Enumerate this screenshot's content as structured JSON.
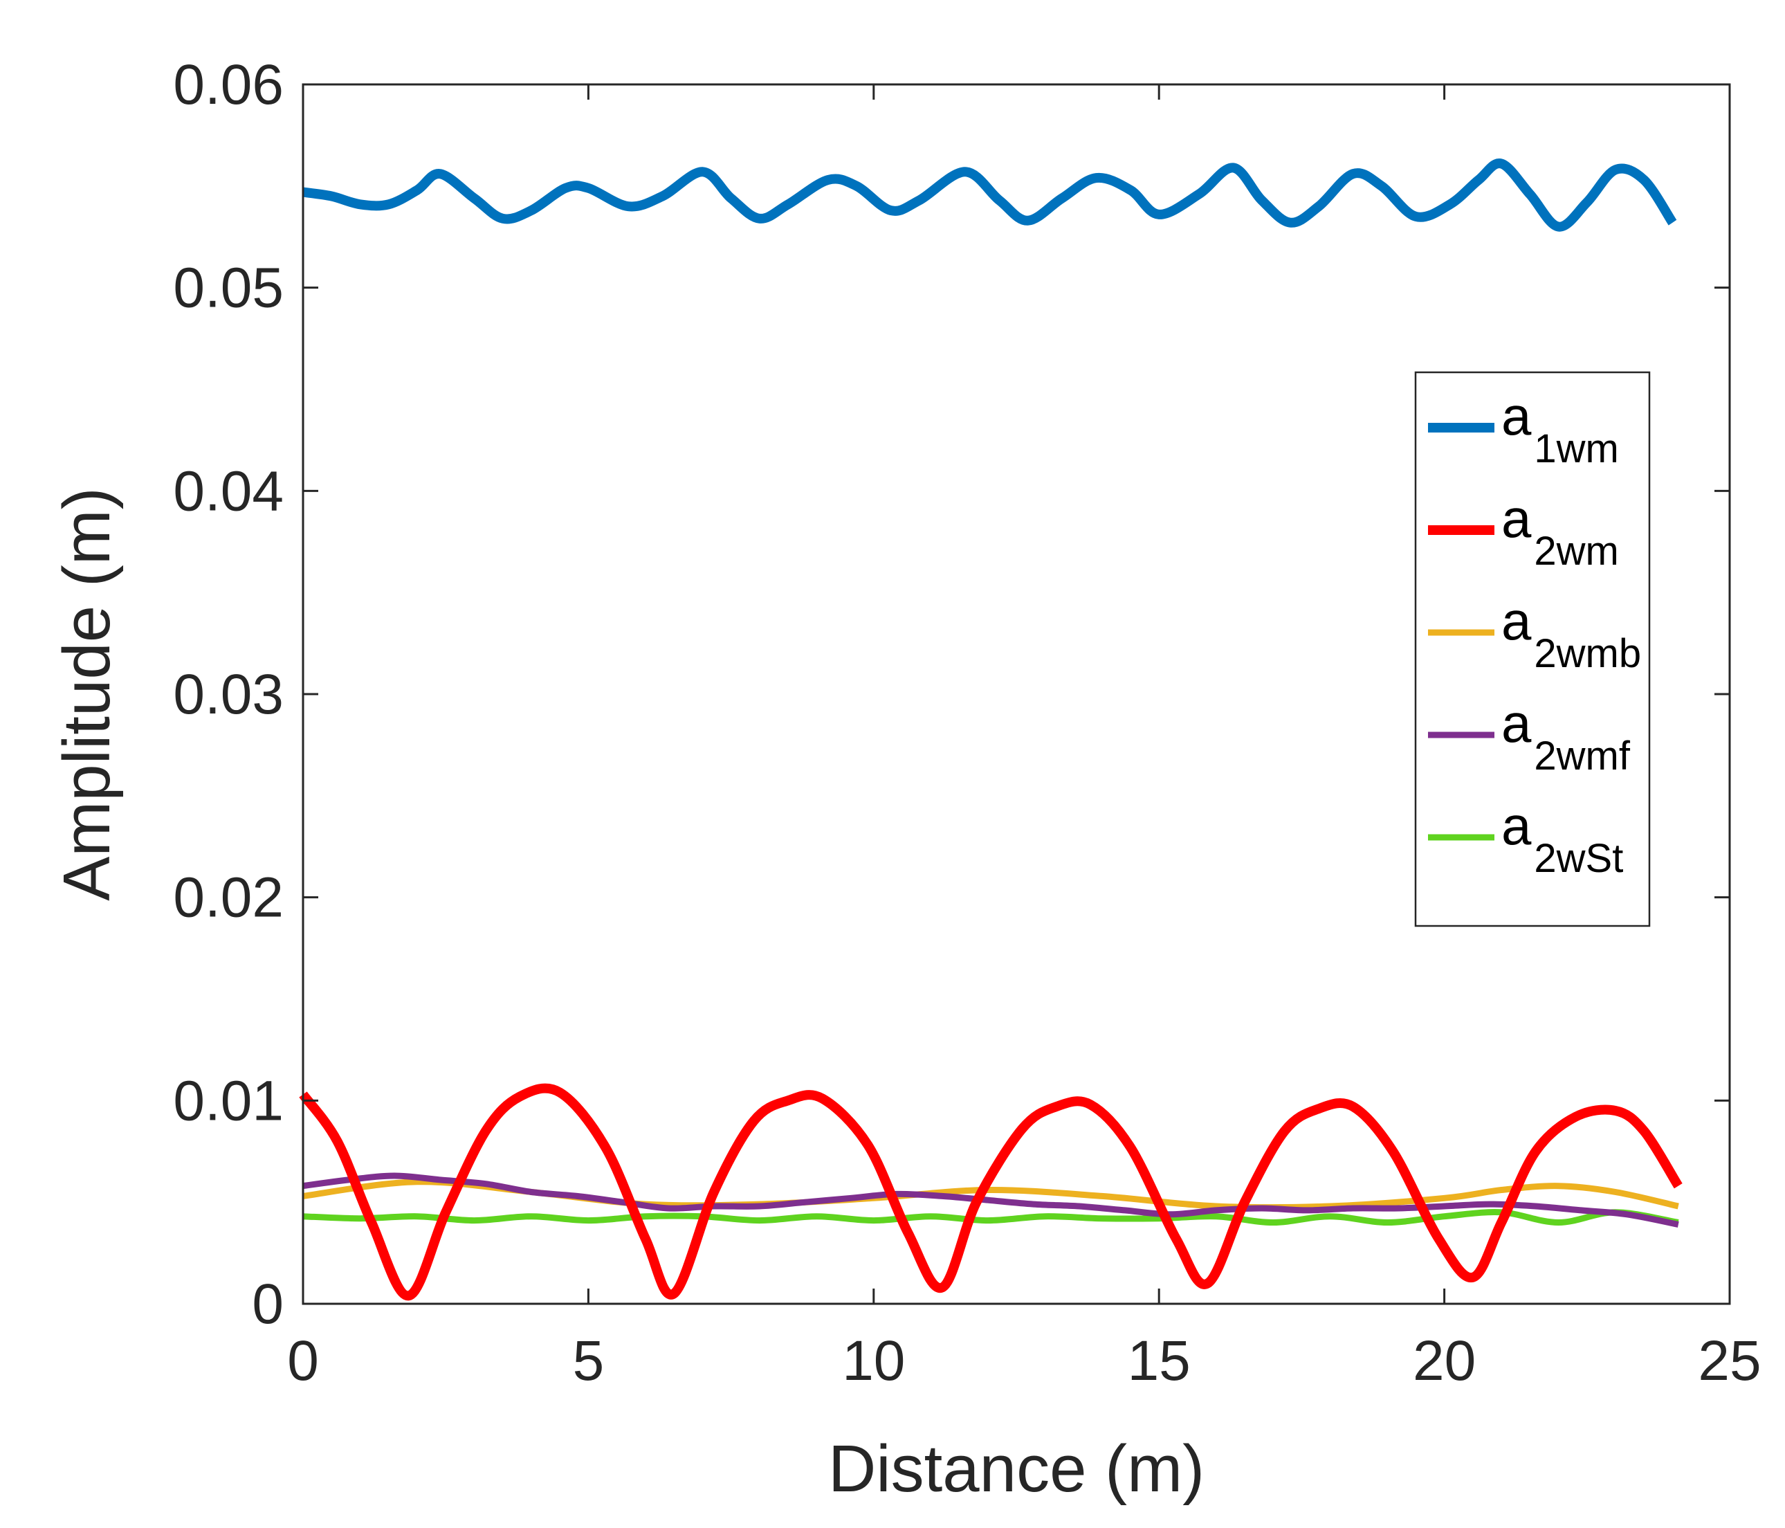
{
  "chart_data": {
    "type": "line",
    "title": "",
    "xlabel": "Distance (m)",
    "ylabel": "Amplitude (m)",
    "xlim": [
      0,
      25
    ],
    "ylim": [
      0,
      0.06
    ],
    "xticks": [
      0,
      5,
      10,
      15,
      20,
      25
    ],
    "xtick_labels": [
      "0",
      "5",
      "10",
      "15",
      "20",
      "25"
    ],
    "yticks": [
      0,
      0.01,
      0.02,
      0.03,
      0.04,
      0.05,
      0.06
    ],
    "ytick_labels": [
      "0",
      "0.01",
      "0.02",
      "0.03",
      "0.04",
      "0.05",
      "0.06"
    ],
    "grid": false,
    "legend_position": "right",
    "series": [
      {
        "name": "a1wm",
        "label_main": "a",
        "label_sub": "1wm",
        "color": "#0072bd",
        "line_width": "thick",
        "x": [
          0,
          0.5,
          1.0,
          1.5,
          2.0,
          2.4,
          3.0,
          3.5,
          4.0,
          4.6,
          5.0,
          5.7,
          6.3,
          7.0,
          7.5,
          8.0,
          8.5,
          9.2,
          9.7,
          10.3,
          10.8,
          11.6,
          12.2,
          12.7,
          13.3,
          13.9,
          14.5,
          15.0,
          15.7,
          16.3,
          16.8,
          17.3,
          17.8,
          18.4,
          18.9,
          19.5,
          20.1,
          20.6,
          21.0,
          21.5,
          22.0,
          22.5,
          23.0,
          23.5,
          24.0
        ],
        "y": [
          0.0547,
          0.0545,
          0.0541,
          0.0541,
          0.0548,
          0.0556,
          0.0544,
          0.0534,
          0.0538,
          0.0549,
          0.0549,
          0.054,
          0.0545,
          0.0557,
          0.0544,
          0.0534,
          0.0541,
          0.0553,
          0.055,
          0.0538,
          0.0543,
          0.0557,
          0.0543,
          0.0533,
          0.0544,
          0.0554,
          0.0548,
          0.0536,
          0.0546,
          0.0559,
          0.0543,
          0.0532,
          0.054,
          0.0556,
          0.055,
          0.0535,
          0.0541,
          0.0553,
          0.0561,
          0.0546,
          0.053,
          0.0542,
          0.0558,
          0.0553,
          0.0532
        ]
      },
      {
        "name": "a2wm",
        "label_main": "a",
        "label_sub": "2wm",
        "color": "#ff0000",
        "line_width": "thick",
        "x": [
          0,
          0.6,
          1.2,
          1.85,
          2.5,
          3.2,
          3.8,
          4.5,
          5.3,
          6.0,
          6.5,
          7.2,
          7.9,
          8.5,
          9.1,
          9.9,
          10.6,
          11.2,
          11.8,
          12.6,
          13.2,
          13.8,
          14.5,
          15.3,
          15.85,
          16.5,
          17.2,
          17.8,
          18.4,
          19.1,
          19.9,
          20.5,
          21.0,
          21.6,
          22.3,
          23.0,
          23.5,
          24.1
        ],
        "y": [
          0.0103,
          0.008,
          0.004,
          0.0004,
          0.0045,
          0.0085,
          0.0102,
          0.0104,
          0.0077,
          0.0032,
          0.0005,
          0.0055,
          0.009,
          0.01,
          0.0101,
          0.0078,
          0.0035,
          0.0008,
          0.005,
          0.0086,
          0.0097,
          0.0098,
          0.0077,
          0.0032,
          0.001,
          0.005,
          0.0085,
          0.0096,
          0.0097,
          0.0075,
          0.0032,
          0.0013,
          0.004,
          0.0075,
          0.0092,
          0.0095,
          0.0085,
          0.0058
        ]
      },
      {
        "name": "a2wmb",
        "label_main": "a",
        "label_sub": "2wmb",
        "color": "#edb120",
        "line_width": "thin",
        "x": [
          0,
          2,
          4,
          6,
          8,
          10,
          12,
          14,
          16,
          18,
          20,
          21,
          22,
          23,
          24.1
        ],
        "y": [
          0.0053,
          0.006,
          0.0055,
          0.0049,
          0.0049,
          0.0052,
          0.0056,
          0.0053,
          0.0048,
          0.0048,
          0.0052,
          0.0056,
          0.0058,
          0.0055,
          0.0048
        ]
      },
      {
        "name": "a2wmf",
        "label_main": "a",
        "label_sub": "2wmf",
        "color": "#7e2f8e",
        "line_width": "thin",
        "x": [
          0,
          0.8,
          1.6,
          2.4,
          3.2,
          4.0,
          4.8,
          5.6,
          6.4,
          7.2,
          8.0,
          8.8,
          9.6,
          10.4,
          11.2,
          12.0,
          12.8,
          13.6,
          14.4,
          15.2,
          16.0,
          16.8,
          17.6,
          18.4,
          19.2,
          20.0,
          20.8,
          21.6,
          22.4,
          23.2,
          24.1
        ],
        "y": [
          0.0058,
          0.0061,
          0.0063,
          0.0061,
          0.0059,
          0.0055,
          0.0053,
          0.005,
          0.0047,
          0.0048,
          0.0048,
          0.005,
          0.0052,
          0.0054,
          0.0053,
          0.0051,
          0.0049,
          0.0048,
          0.0046,
          0.0044,
          0.0046,
          0.0047,
          0.0046,
          0.0047,
          0.0047,
          0.0048,
          0.0049,
          0.0048,
          0.0046,
          0.0044,
          0.0039
        ]
      },
      {
        "name": "a2wSt",
        "label_main": "a",
        "label_sub": "2wSt",
        "color": "#5fd31f",
        "line_width": "thin",
        "x": [
          0,
          1,
          2,
          3,
          4,
          5,
          6,
          7,
          8,
          9,
          10,
          11,
          12,
          13,
          14,
          15,
          16,
          17,
          18,
          19,
          20,
          21,
          22,
          23,
          24.1
        ],
        "y": [
          0.0043,
          0.0042,
          0.0043,
          0.0041,
          0.0043,
          0.0041,
          0.0043,
          0.0043,
          0.0041,
          0.0043,
          0.0041,
          0.0043,
          0.0041,
          0.0043,
          0.0042,
          0.0042,
          0.0043,
          0.004,
          0.0043,
          0.004,
          0.0043,
          0.0045,
          0.004,
          0.0045,
          0.004
        ]
      }
    ]
  }
}
